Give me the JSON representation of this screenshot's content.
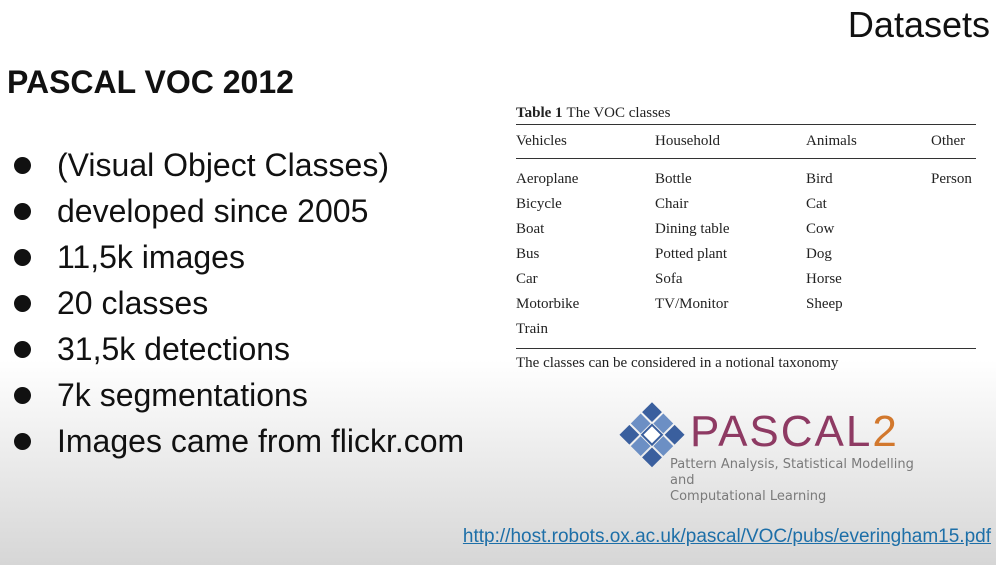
{
  "slide": {
    "title": "Datasets",
    "subtitle": "PASCAL VOC 2012"
  },
  "bullets": [
    "(Visual Object Classes)",
    "developed since 2005",
    "11,5k images",
    "20 classes",
    "31,5k detections",
    "7k segmentations",
    "Images came from flickr.com"
  ],
  "table": {
    "label": "Table 1",
    "caption": "The VOC classes",
    "headers": [
      "Vehicles",
      "Household",
      "Animals",
      "Other"
    ],
    "rows": [
      [
        "Aeroplane",
        "Bottle",
        "Bird",
        "Person"
      ],
      [
        "Bicycle",
        "Chair",
        "Cat",
        ""
      ],
      [
        "Boat",
        "Dining table",
        "Cow",
        ""
      ],
      [
        "Bus",
        "Potted plant",
        "Dog",
        ""
      ],
      [
        "Car",
        "Sofa",
        "Horse",
        ""
      ],
      [
        "Motorbike",
        "TV/Monitor",
        "Sheep",
        ""
      ],
      [
        "Train",
        "",
        "",
        ""
      ]
    ],
    "note": "The classes can be considered in a notional taxonomy"
  },
  "logo": {
    "name": "PASCAL",
    "number": "2",
    "tagline_line1": "Pattern Analysis, Statistical Modelling and",
    "tagline_line2": "Computational Learning",
    "colors": {
      "purple": "#8e3a63",
      "orange": "#d2782d",
      "blue": "#3a5f9e"
    }
  },
  "link": {
    "text": "http://host.robots.ox.ac.uk/pascal/VOC/pubs/everingham15.pdf"
  }
}
